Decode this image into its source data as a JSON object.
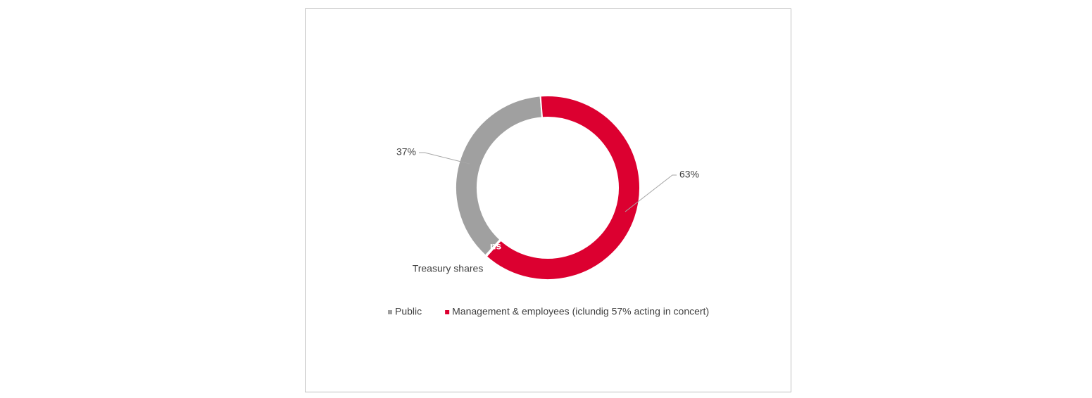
{
  "chart_data": {
    "type": "donut",
    "slices": [
      {
        "name": "Public",
        "value": 37,
        "value_label": "37%",
        "color": "#a0a0a0",
        "in_legend": true
      },
      {
        "name": "Management & employees (iclundig 57% acting in concert)",
        "value": 63,
        "value_label": "63%",
        "color": "#dc0030",
        "in_legend": true
      },
      {
        "name": "Treasury shares",
        "value": 0.2,
        "value_label": "ns",
        "color": "#a0a0a0",
        "in_legend": false
      }
    ],
    "start_angle": 222.5
  }
}
